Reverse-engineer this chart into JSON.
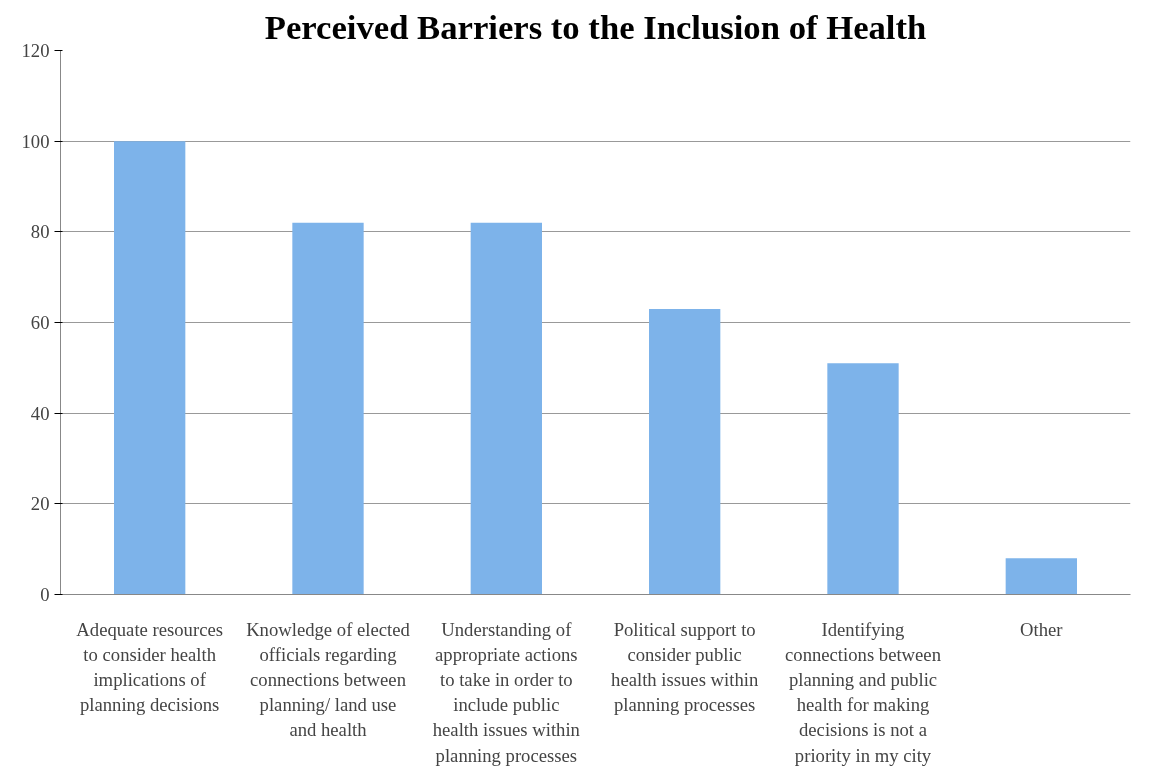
{
  "chart_data": {
    "type": "bar",
    "title": "Perceived Barriers to the Inclusion of Health",
    "categories": [
      "Adequate resources to consider health implications of planning decisions",
      "Knowledge of elected officials regarding connections between planning/ land use and health",
      "Understanding of appropriate actions to take in order to include public health issues within planning processes",
      "Political support to consider public health issues within planning processes",
      "Identifying connections between planning and public health for making decisions is not a priority in my city",
      "Other"
    ],
    "values": [
      100,
      82,
      82,
      63,
      51,
      8
    ],
    "color": "#7db3ea",
    "ylim": [
      0,
      120
    ],
    "yticks": [
      0,
      20,
      40,
      60,
      80,
      100,
      120
    ],
    "grid": "y"
  }
}
